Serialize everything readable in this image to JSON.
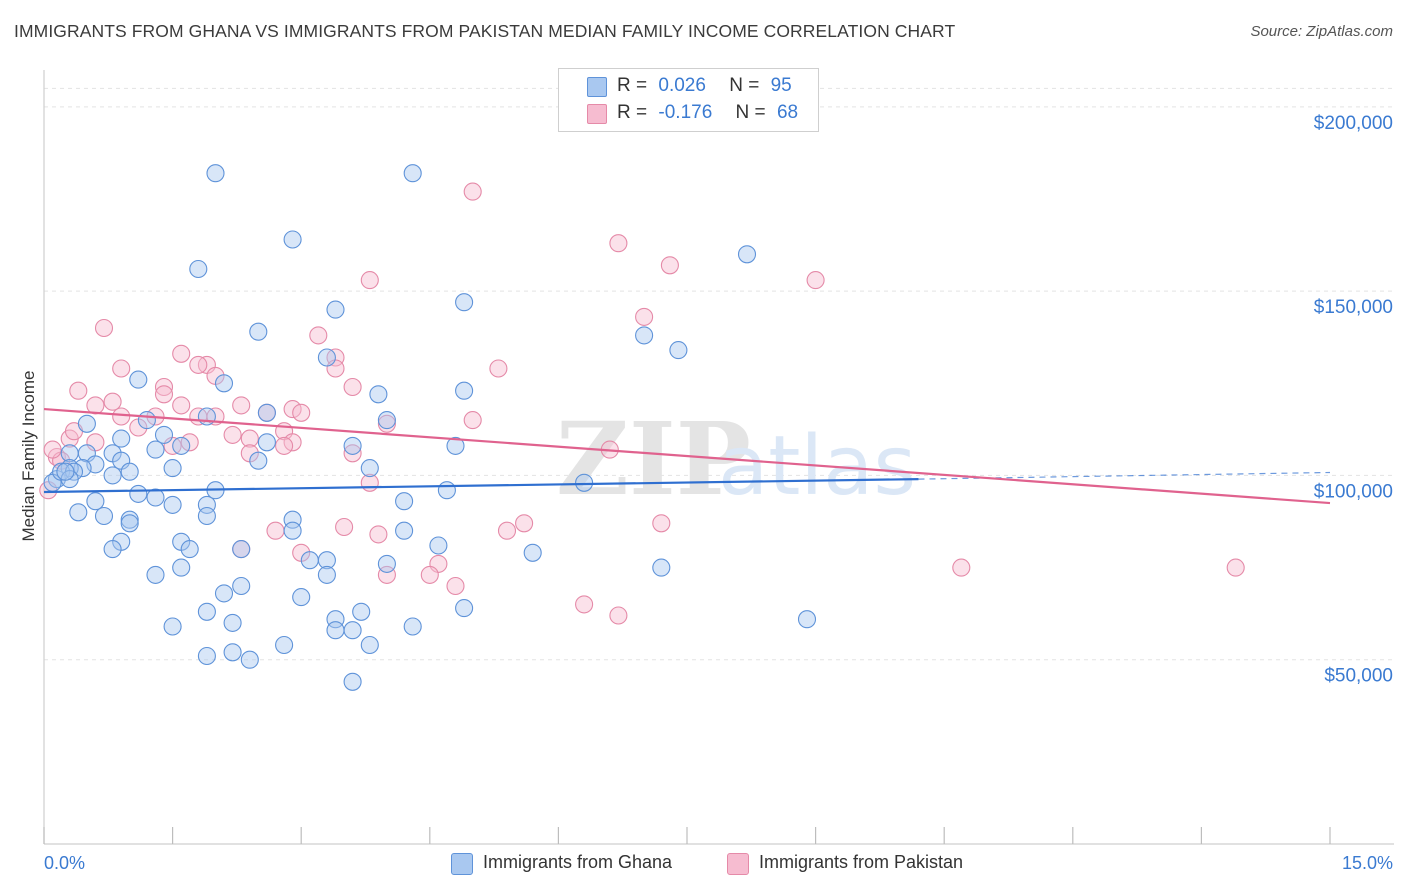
{
  "title": "IMMIGRANTS FROM GHANA VS IMMIGRANTS FROM PAKISTAN MEDIAN FAMILY INCOME CORRELATION CHART",
  "source": "Source: ZipAtlas.com",
  "colors": {
    "ghana_fill": "#a9c8f0",
    "ghana_stroke": "#5f93d9",
    "ghana_line": "#2f6fd0",
    "pakistan_fill": "#f6bcd0",
    "pakistan_stroke": "#e58aa8",
    "pakistan_line": "#e0628e",
    "axis_label": "#3a7ad1",
    "grid": "#e3e3e3"
  },
  "legend": {
    "ghana": {
      "r_label": "R =",
      "r_value": "0.026",
      "n_label": "N =",
      "n_value": "95"
    },
    "pakistan": {
      "r_label": "R =",
      "r_value": "-0.176",
      "n_label": "N =",
      "n_value": "68"
    }
  },
  "chart_data": {
    "type": "scatter",
    "xlabel": "",
    "ylabel": "Median Family Income",
    "xlim": [
      0,
      15
    ],
    "ylim": [
      0,
      210000
    ],
    "x_tick_labels": [
      "0.0%",
      "15.0%"
    ],
    "y_ticks": [
      50000,
      100000,
      150000,
      200000
    ],
    "y_tick_labels": [
      "$50,000",
      "$100,000",
      "$150,000",
      "$200,000"
    ],
    "grid": true,
    "watermark": "ZIPatlas",
    "series": [
      {
        "name": "Immigrants from Ghana",
        "trend": {
          "x0": 0.0,
          "y0": 95500,
          "x1": 10.2,
          "y1": 99000,
          "dashed_to_x": 15.0,
          "dashed_to_y": 100800
        },
        "points": [
          [
            2.0,
            182000
          ],
          [
            4.3,
            182000
          ],
          [
            2.9,
            164000
          ],
          [
            8.2,
            160000
          ],
          [
            1.8,
            156000
          ],
          [
            4.9,
            147000
          ],
          [
            3.4,
            145000
          ],
          [
            2.5,
            139000
          ],
          [
            7.0,
            138000
          ],
          [
            7.4,
            134000
          ],
          [
            3.3,
            132000
          ],
          [
            1.1,
            126000
          ],
          [
            2.1,
            125000
          ],
          [
            4.9,
            123000
          ],
          [
            3.9,
            122000
          ],
          [
            2.6,
            117000
          ],
          [
            1.9,
            116000
          ],
          [
            4.0,
            115000
          ],
          [
            1.2,
            115000
          ],
          [
            0.5,
            114000
          ],
          [
            1.4,
            111000
          ],
          [
            0.9,
            110000
          ],
          [
            2.6,
            109000
          ],
          [
            3.6,
            108000
          ],
          [
            4.8,
            108000
          ],
          [
            1.6,
            108000
          ],
          [
            1.3,
            107000
          ],
          [
            0.8,
            106000
          ],
          [
            0.5,
            106000
          ],
          [
            0.3,
            106000
          ],
          [
            2.5,
            104000
          ],
          [
            0.9,
            104000
          ],
          [
            0.6,
            103000
          ],
          [
            0.45,
            102000
          ],
          [
            0.3,
            102000
          ],
          [
            1.5,
            102000
          ],
          [
            3.8,
            102000
          ],
          [
            0.15,
            99000
          ],
          [
            0.1,
            98000
          ],
          [
            6.3,
            98000
          ],
          [
            4.7,
            96000
          ],
          [
            1.3,
            94000
          ],
          [
            4.2,
            93000
          ],
          [
            0.6,
            93000
          ],
          [
            1.9,
            92000
          ],
          [
            1.5,
            92000
          ],
          [
            0.4,
            90000
          ],
          [
            0.7,
            89000
          ],
          [
            1.9,
            89000
          ],
          [
            1.0,
            88000
          ],
          [
            1.0,
            87000
          ],
          [
            2.9,
            88000
          ],
          [
            2.9,
            85000
          ],
          [
            4.2,
            85000
          ],
          [
            1.6,
            82000
          ],
          [
            0.9,
            82000
          ],
          [
            4.6,
            81000
          ],
          [
            2.3,
            80000
          ],
          [
            0.8,
            80000
          ],
          [
            1.7,
            80000
          ],
          [
            5.7,
            79000
          ],
          [
            3.3,
            77000
          ],
          [
            3.1,
            77000
          ],
          [
            4.0,
            76000
          ],
          [
            7.2,
            75000
          ],
          [
            1.6,
            75000
          ],
          [
            1.3,
            73000
          ],
          [
            3.3,
            73000
          ],
          [
            2.3,
            70000
          ],
          [
            2.1,
            68000
          ],
          [
            3.0,
            67000
          ],
          [
            4.9,
            64000
          ],
          [
            3.7,
            63000
          ],
          [
            1.9,
            63000
          ],
          [
            3.4,
            61000
          ],
          [
            2.2,
            60000
          ],
          [
            8.9,
            61000
          ],
          [
            4.3,
            59000
          ],
          [
            1.5,
            59000
          ],
          [
            3.4,
            58000
          ],
          [
            3.6,
            58000
          ],
          [
            3.8,
            54000
          ],
          [
            2.8,
            54000
          ],
          [
            2.2,
            52000
          ],
          [
            1.9,
            51000
          ],
          [
            2.4,
            50000
          ],
          [
            3.6,
            44000
          ],
          [
            1.0,
            101000
          ],
          [
            0.2,
            101000
          ],
          [
            0.35,
            101000
          ],
          [
            0.8,
            100000
          ],
          [
            0.3,
            99000
          ],
          [
            2.0,
            96000
          ],
          [
            1.1,
            95000
          ],
          [
            0.25,
            101000
          ]
        ]
      },
      {
        "name": "Immigrants from Pakistan",
        "trend": {
          "x0": 0.0,
          "y0": 118000,
          "x1": 15.0,
          "y1": 92500
        },
        "points": [
          [
            5.0,
            177000
          ],
          [
            6.7,
            163000
          ],
          [
            7.3,
            157000
          ],
          [
            9.0,
            153000
          ],
          [
            3.8,
            153000
          ],
          [
            7.0,
            143000
          ],
          [
            0.7,
            140000
          ],
          [
            3.2,
            138000
          ],
          [
            1.6,
            133000
          ],
          [
            3.4,
            132000
          ],
          [
            1.9,
            130000
          ],
          [
            1.8,
            130000
          ],
          [
            0.9,
            129000
          ],
          [
            5.3,
            129000
          ],
          [
            3.4,
            129000
          ],
          [
            2.0,
            127000
          ],
          [
            1.4,
            124000
          ],
          [
            3.6,
            124000
          ],
          [
            0.4,
            123000
          ],
          [
            1.4,
            122000
          ],
          [
            0.8,
            120000
          ],
          [
            1.6,
            119000
          ],
          [
            2.3,
            119000
          ],
          [
            0.6,
            119000
          ],
          [
            2.9,
            118000
          ],
          [
            3.0,
            117000
          ],
          [
            2.6,
            117000
          ],
          [
            2.0,
            116000
          ],
          [
            1.3,
            116000
          ],
          [
            1.8,
            116000
          ],
          [
            0.9,
            116000
          ],
          [
            5.0,
            115000
          ],
          [
            4.0,
            114000
          ],
          [
            1.1,
            113000
          ],
          [
            2.8,
            112000
          ],
          [
            2.2,
            111000
          ],
          [
            2.4,
            110000
          ],
          [
            0.3,
            110000
          ],
          [
            0.6,
            109000
          ],
          [
            2.9,
            109000
          ],
          [
            1.7,
            109000
          ],
          [
            2.8,
            108000
          ],
          [
            6.6,
            107000
          ],
          [
            2.4,
            106000
          ],
          [
            3.6,
            106000
          ],
          [
            0.15,
            105000
          ],
          [
            0.2,
            104000
          ],
          [
            3.8,
            98000
          ],
          [
            0.05,
            96000
          ],
          [
            5.6,
            87000
          ],
          [
            7.2,
            87000
          ],
          [
            3.5,
            86000
          ],
          [
            2.7,
            85000
          ],
          [
            5.4,
            85000
          ],
          [
            3.9,
            84000
          ],
          [
            2.3,
            80000
          ],
          [
            3.0,
            79000
          ],
          [
            10.7,
            75000
          ],
          [
            13.9,
            75000
          ],
          [
            4.6,
            76000
          ],
          [
            4.5,
            73000
          ],
          [
            4.0,
            73000
          ],
          [
            4.8,
            70000
          ],
          [
            6.3,
            65000
          ],
          [
            6.7,
            62000
          ],
          [
            0.1,
            107000
          ],
          [
            0.35,
            112000
          ],
          [
            1.5,
            108000
          ]
        ]
      }
    ]
  }
}
